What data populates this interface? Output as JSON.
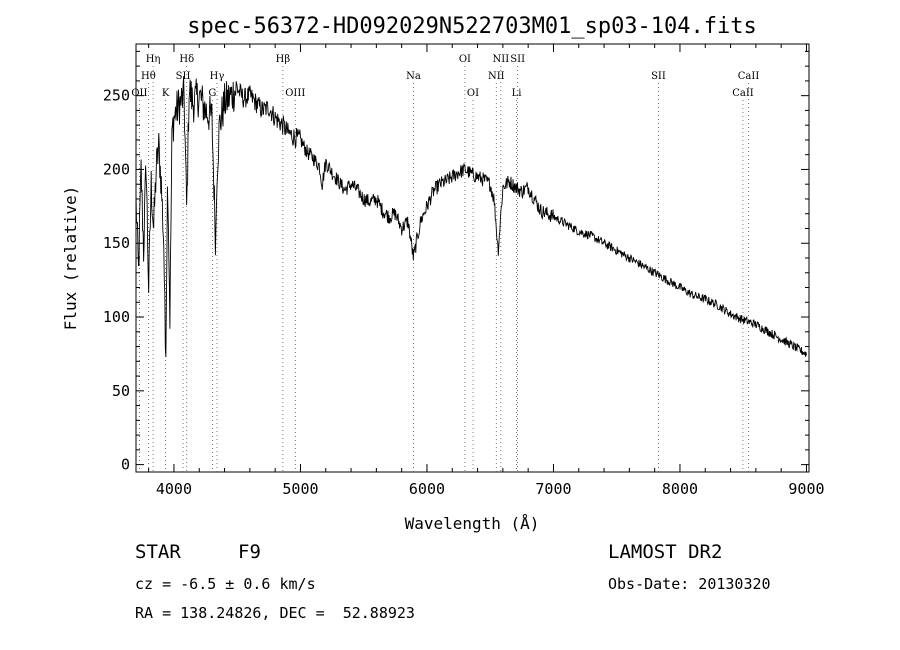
{
  "chart_data": {
    "type": "line",
    "title": "spec-56372-HD092029N522703M01_sp03-104.fits",
    "xlabel": "Wavelength (Å)",
    "ylabel": "Flux (relative)",
    "xlim": [
      3700,
      9020
    ],
    "ylim": [
      -5,
      285
    ],
    "xticks": [
      4000,
      5000,
      6000,
      7000,
      8000,
      9000
    ],
    "yticks": [
      0,
      50,
      100,
      150,
      200,
      250
    ],
    "series": [
      {
        "x": [
          3700,
          3720,
          3740,
          3760,
          3780,
          3800,
          3820,
          3840,
          3860,
          3880,
          3900,
          3920,
          3934,
          3950,
          3968,
          3985,
          4000,
          4020,
          4050,
          4080,
          4101,
          4120,
          4150,
          4200,
          4250,
          4300,
          4330,
          4340,
          4360,
          4400,
          4450,
          4500,
          4550,
          4600,
          4650,
          4700,
          4750,
          4800,
          4861,
          4900,
          4950,
          5000,
          5050,
          5100,
          5150,
          5172,
          5200,
          5250,
          5300,
          5350,
          5400,
          5450,
          5500,
          5550,
          5600,
          5650,
          5700,
          5750,
          5800,
          5850,
          5893,
          5950,
          6000,
          6050,
          6100,
          6150,
          6200,
          6250,
          6300,
          6350,
          6400,
          6450,
          6500,
          6530,
          6563,
          6600,
          6650,
          6700,
          6750,
          6800,
          6850,
          6900,
          6950,
          7000,
          7100,
          7200,
          7300,
          7400,
          7500,
          7600,
          7700,
          7800,
          7900,
          8000,
          8100,
          8200,
          8300,
          8400,
          8500,
          8600,
          8700,
          8800,
          8900,
          9000
        ],
        "y": [
          180,
          130,
          200,
          145,
          205,
          120,
          190,
          160,
          200,
          215,
          190,
          150,
          70,
          200,
          100,
          225,
          235,
          240,
          245,
          250,
          170,
          255,
          245,
          250,
          240,
          235,
          150,
          200,
          230,
          245,
          250,
          255,
          248,
          250,
          245,
          240,
          242,
          235,
          230,
          225,
          222,
          220,
          212,
          208,
          202,
          190,
          205,
          198,
          192,
          186,
          190,
          186,
          180,
          178,
          180,
          172,
          168,
          170,
          160,
          165,
          140,
          165,
          175,
          185,
          190,
          192,
          195,
          198,
          200,
          197,
          195,
          193,
          190,
          180,
          145,
          188,
          192,
          188,
          185,
          188,
          180,
          172,
          170,
          168,
          163,
          158,
          155,
          150,
          145,
          140,
          135,
          130,
          125,
          120,
          115,
          112,
          108,
          102,
          98,
          95,
          90,
          85,
          80,
          75
        ]
      }
    ],
    "lines": [
      {
        "wl": 3727,
        "label": "OII",
        "row": 3
      },
      {
        "wl": 3798,
        "label": "Hθ",
        "row": 2
      },
      {
        "wl": 3835,
        "label": "Hη",
        "row": 1
      },
      {
        "wl": 3934,
        "label": "K",
        "row": 3
      },
      {
        "wl": 4072,
        "label": "SII",
        "row": 2
      },
      {
        "wl": 4101,
        "label": "Hδ",
        "row": 1
      },
      {
        "wl": 4304,
        "label": "G",
        "row": 3
      },
      {
        "wl": 4340,
        "label": "Hγ",
        "row": 2
      },
      {
        "wl": 4861,
        "label": "Hβ",
        "row": 1
      },
      {
        "wl": 4959,
        "label": "OIII",
        "row": 3
      },
      {
        "wl": 5893,
        "label": "Na",
        "row": 2
      },
      {
        "wl": 6300,
        "label": "OI",
        "row": 1
      },
      {
        "wl": 6364,
        "label": "OI",
        "row": 3
      },
      {
        "wl": 6548,
        "label": "NII",
        "row": 2
      },
      {
        "wl": 6584,
        "label": "NII",
        "row": 1
      },
      {
        "wl": 6708,
        "label": "Li",
        "row": 3
      },
      {
        "wl": 6717,
        "label": "SII",
        "row": 1
      },
      {
        "wl": 7830,
        "label": "SII",
        "row": 2
      },
      {
        "wl": 8498,
        "label": "CaII",
        "row": 3
      },
      {
        "wl": 8542,
        "label": "CaII",
        "row": 2
      }
    ]
  },
  "info": {
    "object_class": "STAR",
    "subclass": "F9",
    "survey": "LAMOST DR2",
    "redshift": "cz = -6.5 ± 0.6 km/s",
    "obs_date": "Obs-Date: 20130320",
    "coords": "RA = 138.24826, DEC =  52.88923"
  }
}
